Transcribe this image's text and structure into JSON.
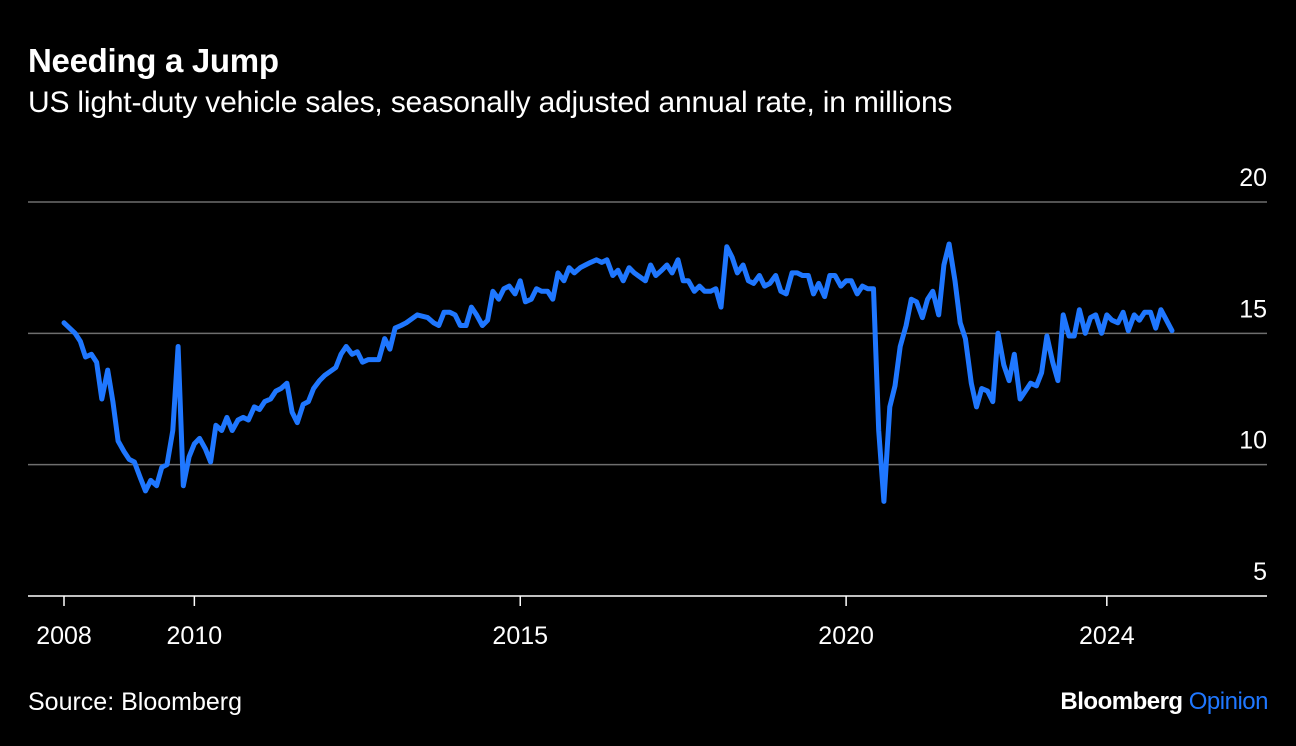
{
  "colors": {
    "background": "#000000",
    "text": "#ffffff",
    "series": "#1f77ff",
    "gridline": "#6e6e6e",
    "brand_accent": "#1f77ff"
  },
  "header": {
    "title": "Needing a Jump",
    "subtitle": "US light-duty vehicle sales, seasonally adjusted annual rate, in millions"
  },
  "footer": {
    "source": "Source: Bloomberg",
    "brand_name": "Bloomberg",
    "brand_suffix": "Opinion"
  },
  "chart_data": {
    "type": "line",
    "title": "Needing a Jump",
    "subtitle": "US light-duty vehicle sales, seasonally adjusted annual rate, in millions",
    "xlabel": "",
    "ylabel": "",
    "xlim": [
      2007.5,
      2025.3
    ],
    "ylim": [
      5,
      20
    ],
    "y_ticks": [
      5,
      10,
      15,
      20
    ],
    "y_tick_side": "right",
    "x_ticks": [
      2008,
      2010,
      2015,
      2020,
      2024
    ],
    "grid": "horizontal",
    "legend": "none",
    "series": [
      {
        "points": [
          [
            2008.0,
            15.4
          ],
          [
            2008.17,
            15.0
          ],
          [
            2008.25,
            14.7
          ],
          [
            2008.33,
            14.1
          ],
          [
            2008.42,
            14.2
          ],
          [
            2008.5,
            13.9
          ],
          [
            2008.58,
            12.5
          ],
          [
            2008.67,
            13.6
          ],
          [
            2008.75,
            12.4
          ],
          [
            2008.83,
            10.9
          ],
          [
            2008.92,
            10.5
          ],
          [
            2009.0,
            10.2
          ],
          [
            2009.08,
            10.1
          ],
          [
            2009.17,
            9.5
          ],
          [
            2009.25,
            9.0
          ],
          [
            2009.33,
            9.4
          ],
          [
            2009.42,
            9.2
          ],
          [
            2009.5,
            9.9
          ],
          [
            2009.58,
            10.0
          ],
          [
            2009.67,
            11.3
          ],
          [
            2009.75,
            14.5
          ],
          [
            2009.83,
            9.2
          ],
          [
            2009.92,
            10.3
          ],
          [
            2010.0,
            10.8
          ],
          [
            2010.08,
            11.0
          ],
          [
            2010.17,
            10.6
          ],
          [
            2010.25,
            10.1
          ],
          [
            2010.33,
            11.5
          ],
          [
            2010.42,
            11.3
          ],
          [
            2010.5,
            11.8
          ],
          [
            2010.58,
            11.3
          ],
          [
            2010.67,
            11.7
          ],
          [
            2010.75,
            11.8
          ],
          [
            2010.83,
            11.7
          ],
          [
            2010.92,
            12.2
          ],
          [
            2011.0,
            12.1
          ],
          [
            2011.08,
            12.4
          ],
          [
            2011.17,
            12.5
          ],
          [
            2011.25,
            12.8
          ],
          [
            2011.33,
            12.9
          ],
          [
            2011.42,
            13.1
          ],
          [
            2011.5,
            12.0
          ],
          [
            2011.58,
            11.6
          ],
          [
            2011.67,
            12.3
          ],
          [
            2011.75,
            12.4
          ],
          [
            2011.83,
            12.9
          ],
          [
            2011.92,
            13.2
          ],
          [
            2012.0,
            13.4
          ],
          [
            2012.17,
            13.7
          ],
          [
            2012.25,
            14.2
          ],
          [
            2012.33,
            14.5
          ],
          [
            2012.42,
            14.2
          ],
          [
            2012.5,
            14.3
          ],
          [
            2012.58,
            13.9
          ],
          [
            2012.67,
            14.0
          ],
          [
            2012.83,
            14.0
          ],
          [
            2012.92,
            14.8
          ],
          [
            2013.0,
            14.4
          ],
          [
            2013.08,
            15.2
          ],
          [
            2013.17,
            15.3
          ],
          [
            2013.25,
            15.4
          ],
          [
            2013.42,
            15.7
          ],
          [
            2013.58,
            15.6
          ],
          [
            2013.67,
            15.4
          ],
          [
            2013.75,
            15.3
          ],
          [
            2013.83,
            15.8
          ],
          [
            2013.92,
            15.8
          ],
          [
            2014.0,
            15.7
          ],
          [
            2014.08,
            15.3
          ],
          [
            2014.17,
            15.3
          ],
          [
            2014.25,
            16.0
          ],
          [
            2014.33,
            15.7
          ],
          [
            2014.42,
            15.3
          ],
          [
            2014.5,
            15.5
          ],
          [
            2014.58,
            16.6
          ],
          [
            2014.67,
            16.3
          ],
          [
            2014.75,
            16.7
          ],
          [
            2014.83,
            16.8
          ],
          [
            2014.92,
            16.5
          ],
          [
            2015.0,
            17.0
          ],
          [
            2015.08,
            16.2
          ],
          [
            2015.17,
            16.3
          ],
          [
            2015.25,
            16.7
          ],
          [
            2015.33,
            16.6
          ],
          [
            2015.42,
            16.6
          ],
          [
            2015.5,
            16.3
          ],
          [
            2015.58,
            17.3
          ],
          [
            2015.67,
            17.0
          ],
          [
            2015.75,
            17.5
          ],
          [
            2015.83,
            17.3
          ],
          [
            2015.92,
            17.5
          ],
          [
            2016.0,
            17.6
          ],
          [
            2016.08,
            17.7
          ],
          [
            2016.17,
            17.8
          ],
          [
            2016.25,
            17.7
          ],
          [
            2016.33,
            17.8
          ],
          [
            2016.42,
            17.2
          ],
          [
            2016.5,
            17.4
          ],
          [
            2016.58,
            17.0
          ],
          [
            2016.67,
            17.5
          ],
          [
            2016.75,
            17.3
          ],
          [
            2016.92,
            17.0
          ],
          [
            2017.0,
            17.6
          ],
          [
            2017.08,
            17.2
          ],
          [
            2017.17,
            17.4
          ],
          [
            2017.25,
            17.6
          ],
          [
            2017.33,
            17.3
          ],
          [
            2017.42,
            17.8
          ],
          [
            2017.5,
            17.0
          ],
          [
            2017.58,
            17.0
          ],
          [
            2017.67,
            16.6
          ],
          [
            2017.75,
            16.8
          ],
          [
            2017.83,
            16.6
          ],
          [
            2017.92,
            16.6
          ],
          [
            2018.0,
            16.7
          ],
          [
            2018.08,
            16.0
          ],
          [
            2018.17,
            18.3
          ],
          [
            2018.25,
            17.9
          ],
          [
            2018.33,
            17.3
          ],
          [
            2018.42,
            17.6
          ],
          [
            2018.5,
            17.0
          ],
          [
            2018.58,
            16.9
          ],
          [
            2018.67,
            17.2
          ],
          [
            2018.75,
            16.8
          ],
          [
            2018.83,
            16.9
          ],
          [
            2018.92,
            17.2
          ],
          [
            2019.0,
            16.6
          ],
          [
            2019.08,
            16.5
          ],
          [
            2019.17,
            17.3
          ],
          [
            2019.25,
            17.3
          ],
          [
            2019.33,
            17.2
          ],
          [
            2019.42,
            17.2
          ],
          [
            2019.5,
            16.5
          ],
          [
            2019.58,
            16.9
          ],
          [
            2019.67,
            16.4
          ],
          [
            2019.75,
            17.2
          ],
          [
            2019.83,
            17.2
          ],
          [
            2019.92,
            16.8
          ],
          [
            2020.0,
            17.0
          ],
          [
            2020.08,
            17.0
          ],
          [
            2020.17,
            16.5
          ],
          [
            2020.25,
            16.8
          ],
          [
            2020.33,
            16.7
          ],
          [
            2020.42,
            16.7
          ],
          [
            2020.5,
            11.3
          ],
          [
            2020.58,
            8.6
          ],
          [
            2020.67,
            12.2
          ],
          [
            2020.75,
            13.0
          ],
          [
            2020.83,
            14.5
          ],
          [
            2020.92,
            15.3
          ],
          [
            2021.0,
            16.3
          ],
          [
            2021.08,
            16.2
          ],
          [
            2021.17,
            15.6
          ],
          [
            2021.25,
            16.3
          ],
          [
            2021.33,
            16.6
          ],
          [
            2021.42,
            15.7
          ],
          [
            2021.5,
            17.6
          ],
          [
            2021.58,
            18.4
          ],
          [
            2021.67,
            17.0
          ],
          [
            2021.75,
            15.4
          ],
          [
            2021.83,
            14.8
          ],
          [
            2021.92,
            13.1
          ],
          [
            2022.0,
            12.2
          ],
          [
            2022.08,
            12.9
          ],
          [
            2022.17,
            12.8
          ],
          [
            2022.25,
            12.4
          ],
          [
            2022.33,
            15.0
          ],
          [
            2022.42,
            13.8
          ],
          [
            2022.5,
            13.2
          ],
          [
            2022.58,
            14.2
          ],
          [
            2022.67,
            12.5
          ],
          [
            2022.83,
            13.1
          ],
          [
            2022.92,
            13.0
          ],
          [
            2023.0,
            13.5
          ],
          [
            2023.08,
            14.9
          ],
          [
            2023.17,
            13.9
          ],
          [
            2023.25,
            13.2
          ],
          [
            2023.33,
            15.7
          ],
          [
            2023.42,
            14.9
          ],
          [
            2023.5,
            14.9
          ],
          [
            2023.58,
            15.9
          ],
          [
            2023.67,
            15.0
          ],
          [
            2023.75,
            15.6
          ],
          [
            2023.83,
            15.7
          ],
          [
            2023.92,
            15.0
          ],
          [
            2024.0,
            15.7
          ],
          [
            2024.08,
            15.5
          ],
          [
            2024.17,
            15.4
          ],
          [
            2024.25,
            15.8
          ],
          [
            2024.33,
            15.1
          ],
          [
            2024.42,
            15.7
          ],
          [
            2024.5,
            15.5
          ],
          [
            2024.58,
            15.8
          ],
          [
            2024.67,
            15.8
          ],
          [
            2024.75,
            15.2
          ],
          [
            2024.83,
            15.9
          ],
          [
            2025.0,
            15.1
          ]
        ]
      }
    ]
  }
}
